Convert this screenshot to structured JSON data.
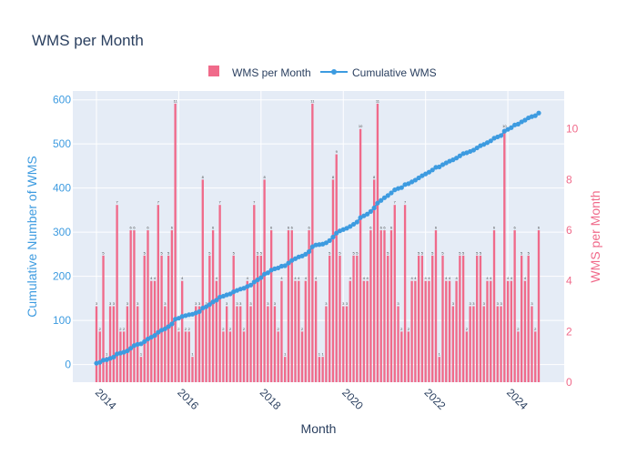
{
  "chart_data": {
    "type": "bar+line",
    "title": "WMS per Month",
    "xlabel": "Month",
    "ylabel_left": "Cumulative Number of WMS",
    "ylabel_right": "WMS per Month",
    "legend": {
      "position": "top-center",
      "entries": [
        "WMS per Month",
        "Cumulative WMS"
      ]
    },
    "colors": {
      "bars": "#f06a8a",
      "line": "#3d9be0",
      "plot_bg": "#e5ecf6",
      "title": "#2a3f5f",
      "left_axis": "#3d9be0",
      "right_axis": "#f06a8a"
    },
    "x_start": "2014-01",
    "x_ticks": [
      "2014",
      "2016",
      "2018",
      "2020",
      "2022",
      "2024"
    ],
    "y_left": {
      "range": [
        -40,
        620
      ],
      "ticks": [
        0,
        100,
        200,
        300,
        400,
        500,
        600
      ]
    },
    "y_right": {
      "range": [
        0,
        11.5
      ],
      "ticks": [
        0,
        2,
        4,
        6,
        8,
        10
      ]
    },
    "grid": true,
    "series": [
      {
        "name": "WMS per Month",
        "axis": "right",
        "values": [
          3,
          2,
          5,
          1,
          3,
          3,
          7,
          2,
          2,
          3,
          6,
          6,
          3,
          1,
          5,
          6,
          4,
          4,
          7,
          5,
          3,
          5,
          6,
          11,
          2,
          4,
          2,
          2,
          1,
          3,
          3,
          8,
          3,
          5,
          6,
          4,
          7,
          2,
          3,
          2,
          5,
          3,
          3,
          2,
          4,
          3,
          7,
          5,
          5,
          8,
          3,
          6,
          3,
          2,
          4,
          1,
          6,
          6,
          4,
          4,
          2,
          4,
          6,
          11,
          4,
          1,
          1,
          3,
          5,
          8,
          9,
          5,
          3,
          3,
          4,
          5,
          5,
          10,
          4,
          4,
          6,
          8,
          11,
          6,
          6,
          5,
          6,
          7,
          3,
          2,
          7,
          2,
          4,
          4,
          5,
          5,
          4,
          4,
          5,
          6,
          1,
          5,
          4,
          4,
          3,
          4,
          5,
          5,
          2,
          3,
          3,
          5,
          5,
          3,
          4,
          4,
          6,
          3,
          3,
          10,
          4,
          4,
          6,
          2,
          5,
          4,
          5,
          3,
          2,
          6
        ]
      },
      {
        "name": "Cumulative WMS",
        "axis": "left",
        "type": "cumulative"
      }
    ]
  }
}
